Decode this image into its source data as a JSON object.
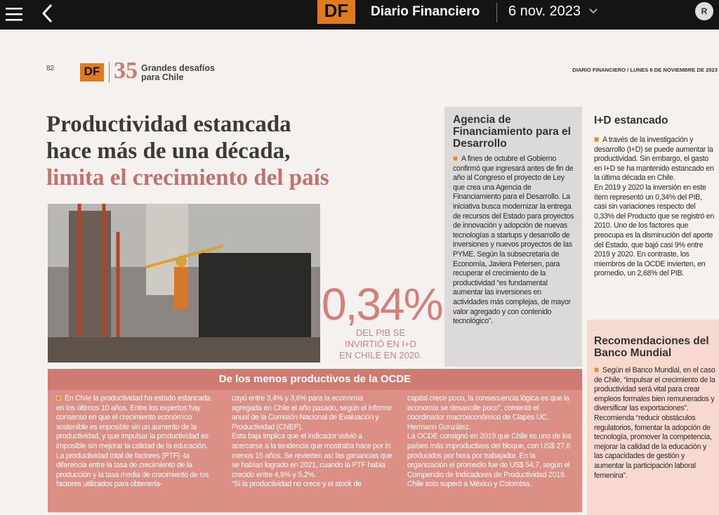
{
  "topbar": {
    "logo": "DF",
    "brand": "Diario Financiero",
    "date": "6 nov. 2023",
    "avatar": "R"
  },
  "page_header": {
    "page_number": "82",
    "logo": "DF",
    "anniversary": "35",
    "tagline": [
      "Grandes desafíos",
      "para Chile"
    ],
    "dateline": "DIARIO FINANCIERO / LUNES 6 DE NOVIEMBRE DE 2023"
  },
  "headline": [
    "Productividad estancada",
    "hace más de una década,",
    "limita el crecimiento del país"
  ],
  "stat": {
    "value": "0,34%",
    "caption": [
      "DEL PIB SE",
      "INVIRTIÓ EN I+D",
      "EN CHILE EN 2020."
    ]
  },
  "ocde_box": {
    "title": "De los menos productivos de la OCDE",
    "columns": [
      [
        "En Chile la productividad ha estado estancada en los últimos 10 años. Entre los expertos hay consenso en que el crecimiento económico sostenible es imposible sin un aumento de la productividad, y que impulsar la productividad es imposible sin mejorar la calidad de la educación.",
        "La productividad total de factores (PTF) -la diferencia entre la tasa de crecimiento de la producción y la tasa media de crecimiento de los factores utilizados para obtenerla-"
      ],
      [
        "cayó entre 3,4% y 3,6% para la economía agregada en Chile el año pasado, según el informe anual de la Comisión Nacional de Evaluación y Productividad (CNEP).",
        "Esta baja implica que el indicador volvió a acercarse a la tendencia que mostraba hace por lo menos 15 años. Se revierten así las ganancias que se habían logrado en 2021, cuando la PTF había crecido entre 4,9% y 5,2%.",
        "“Si la productividad no crece y el stock de"
      ],
      [
        "capital crece poco, la consecuencia lógica es que la economía se desarrolle poco”, comentó el coordinador macroeconómico de Clapes UC, Hermann González.",
        "La OCDE consignó en 2019 que Chile es uno de los países más improductivos del bloque, con US$ 27,6 producidos por hora por trabajador. En la organización el promedio fue de US$ 54,7, según el Compendio de Indicadores de Productividad 2019. Chile solo superó a México y Colombia."
      ]
    ]
  },
  "agencia": {
    "title": "Agencia de Financiamiento para el Desarrollo",
    "body": "A fines de octubre el Gobierno confirmó que ingresará antes de fin de año al Congreso el proyecto de Ley que crea una Agencia de Financiamiento para el Desarrollo. La iniciativa busca modernizar la entrega de recursos del Estado para proyectos de innovación y adopción de nuevas tecnologías a startups y desarrollo de inversiones y nuevos proyectos de las PYME. Según la subsecretaria de Economía, Javiera Petersen, para recuperar el crecimiento de la productividad “es fundamental aumentar las inversiones en actividades más complejas, de mayor valor agregado y con contenido tecnológico”."
  },
  "id_estancado": {
    "title": "I+D estancado",
    "paragraphs": [
      "A través de la investigación y desarrollo (I+D) se puede aumentar la productividad. Sin embargo, el gasto en I+D se ha mantenido estancado en la última década en Chile.",
      "En 2019 y 2020 la inversión en este ítem representó un 0,34% del PIB, casi sin variaciones respecto del 0,33% del Producto que se registró en 2010. Uno de los factores que preocupa es la disminución del aporte del Estado, que bajó casi 9% entre 2019 y 2020. En contraste, los miembros de la OCDE invierten, en promedio, un 2,68% del PIB."
    ]
  },
  "recomendaciones": {
    "title": "Recomendaciones del Banco Mundial",
    "body": "Según el Banco Mundial, en el caso de Chile, “impulsar el crecimiento de la productividad será vital para crear empleos formales bien remunerados y diversificar las exportaciones”. Recomienda “reducir obstáculos regulatorios, fomentar la adopción de tecnología, promover la competencia, mejorar la calidad de la educación y las capacidades de gestión y aumentar la participación laboral femenina”."
  }
}
